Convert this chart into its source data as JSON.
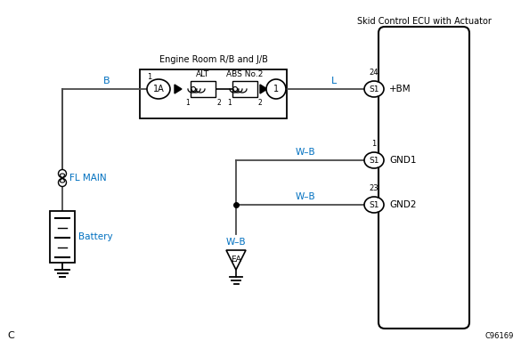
{
  "bg_color": "#ffffff",
  "line_color": "#4a4a4a",
  "blue_color": "#0070c0",
  "black": "#000000",
  "bottom_label": "C",
  "corner_label": "C96169",
  "ecu_title": "Skid Control ECU with Actuator",
  "er_title": "Engine Room R/B and J/B",
  "fl_main": "FL MAIN",
  "battery": "Battery",
  "wire_B": "B",
  "wire_L": "L",
  "wire_WB": "W–B",
  "pin_BM": "+BM",
  "pin_GND1": "GND1",
  "pin_GND2": "GND2",
  "num_24": "24",
  "num_1": "1",
  "num_23": "23",
  "alt_label": "ALT",
  "abs_label": "ABS No.2",
  "connector_1A": "1A",
  "connector_1": "1",
  "s1": "S1",
  "ea": "EA"
}
